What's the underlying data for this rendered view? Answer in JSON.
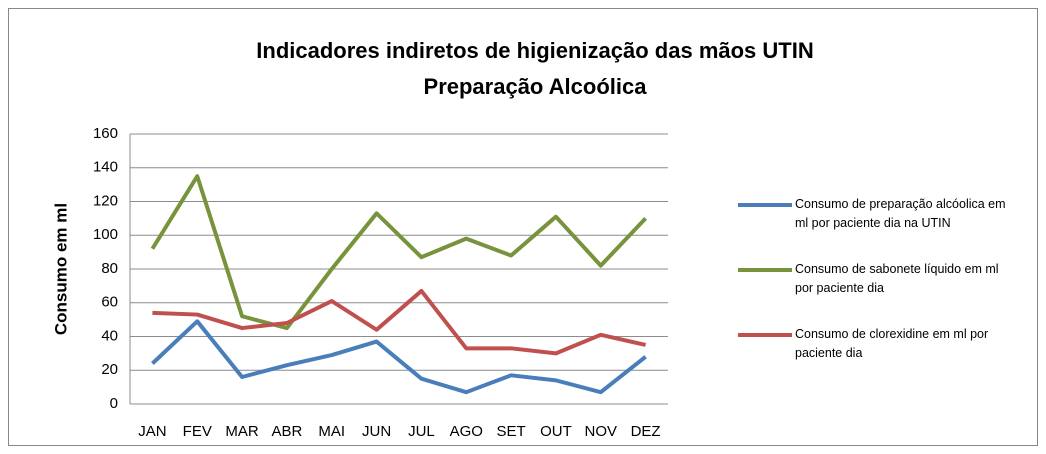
{
  "chart_data": {
    "type": "line",
    "title": "Indicadores indiretos de higienização das mãos UTIN",
    "subtitle": "Preparação Alcoólica",
    "y_label": "Consumo em ml",
    "categories": [
      "JAN",
      "FEV",
      "MAR",
      "ABR",
      "MAI",
      "JUN",
      "JUL",
      "AGO",
      "SET",
      "OUT",
      "NOV",
      "DEZ"
    ],
    "series": [
      {
        "name": "Consumo de preparação alcóolica em ml por paciente dia na UTIN",
        "color": "#4a7ebb",
        "values": [
          24,
          49,
          16,
          23,
          29,
          37,
          15,
          7,
          17,
          14,
          7,
          28
        ]
      },
      {
        "name": "Consumo de sabonete líquido em ml por paciente dia",
        "color": "#77933c",
        "values": [
          92,
          135,
          52,
          45,
          80,
          113,
          87,
          98,
          88,
          111,
          82,
          110
        ]
      },
      {
        "name": "Consumo de clorexidine em ml por paciente dia",
        "color": "#c0504d",
        "values": [
          54,
          53,
          45,
          48,
          61,
          44,
          67,
          33,
          33,
          30,
          41,
          35
        ]
      }
    ],
    "ylim": [
      0,
      160
    ],
    "yticks": [
      0,
      20,
      40,
      60,
      80,
      100,
      120,
      140,
      160
    ],
    "grid": true,
    "legend": "right"
  }
}
